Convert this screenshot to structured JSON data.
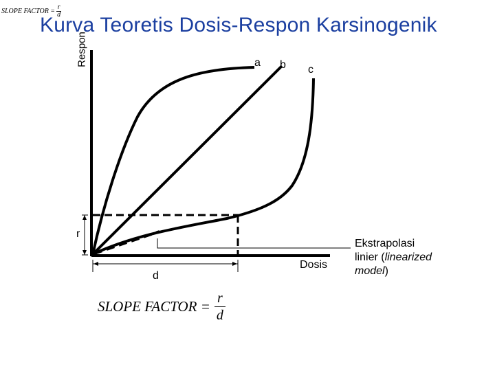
{
  "title": "Kurva Teoretis Dosis-Respon Karsinogenik",
  "corner_formula": {
    "text": "SLOPE FACTOR =",
    "numerator": "r",
    "denominator": "d"
  },
  "axes": {
    "y_label": "Respon",
    "x_label": "Dosis"
  },
  "curve_labels": {
    "a": "a",
    "b": "b",
    "c": "c"
  },
  "dimension_labels": {
    "r": "r",
    "d": "d"
  },
  "annotation": {
    "line1": "Ekstrapolasi",
    "line2_prefix": "linier (",
    "line2_italic": "linearized",
    "line3_italic": "model",
    "line3_suffix": ")"
  },
  "slope_formula": {
    "text": "SLOPE FACTOR =",
    "numerator": "r",
    "denominator": "d"
  }
}
